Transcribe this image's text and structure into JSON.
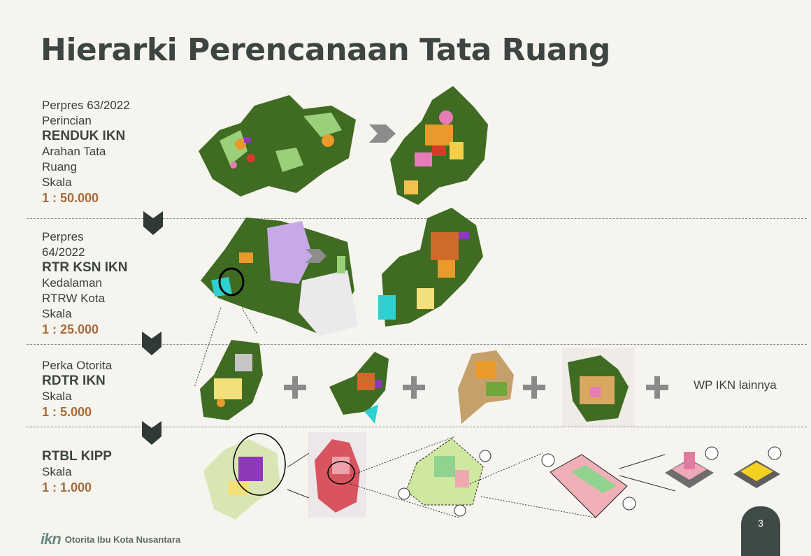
{
  "title": "Hierarki Perencanaan Tata Ruang",
  "levels": [
    {
      "lines": [
        "Perpres 63/2022",
        "Perincian"
      ],
      "name": "RENDUK IKN",
      "desc": [
        "Arahan Tata",
        "Ruang",
        "Skala"
      ],
      "scale": "1 : 50.000"
    },
    {
      "lines": [
        "Perpres",
        "64/2022"
      ],
      "name": "RTR KSN IKN",
      "desc": [
        "Kedalaman",
        "RTRW Kota",
        "Skala"
      ],
      "scale": "1 : 25.000"
    },
    {
      "lines": [
        "Perka Otorita"
      ],
      "name": "RDTR IKN",
      "desc": [
        "Skala"
      ],
      "scale": "1 : 5.000"
    },
    {
      "lines": [],
      "name": "RTBL KIPP",
      "desc": [
        "Skala"
      ],
      "scale": "1 : 1.000"
    }
  ],
  "wp_other": "WP IKN lainnya",
  "footer": {
    "logo": "ikn",
    "org": "Otorita Ibu Kota Nusantara"
  },
  "page_number": "3",
  "colors": {
    "forest": "#3f6b22",
    "green": "#6fa83a",
    "orange": "#e89a2b",
    "red": "#d83a2a",
    "pink": "#e77bb7",
    "purple": "#8e3ab8",
    "cyan": "#2fd0d0",
    "scale": "#a86a3a"
  }
}
